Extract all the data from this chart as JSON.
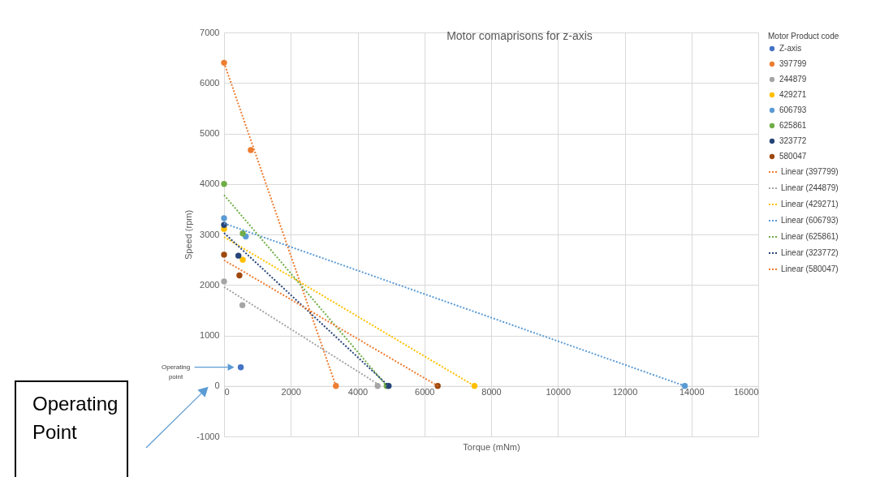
{
  "chart_data": {
    "type": "scatter",
    "title": "Motor comaprisons for z-axis",
    "xlabel": "Torque (mNm)",
    "ylabel": "Speed (rpm)",
    "legend_title": "Motor Product code",
    "xlim": [
      0,
      16000
    ],
    "xticks": [
      0,
      2000,
      4000,
      6000,
      8000,
      10000,
      12000,
      14000,
      16000
    ],
    "ylim": [
      -1000,
      7000
    ],
    "yticks": [
      -1000,
      0,
      1000,
      2000,
      3000,
      4000,
      5000,
      6000,
      7000
    ],
    "grid": true,
    "legend": "top right",
    "marker": "circle",
    "series": [
      {
        "name": "Z-axis",
        "color": "#4472c4",
        "x": [
          500
        ],
        "values": [
          370
        ]
      },
      {
        "name": "397799",
        "color": "#ed7d31",
        "x": [
          0,
          800,
          3350
        ],
        "values": [
          6400,
          4670,
          0
        ]
      },
      {
        "name": "244879",
        "color": "#a5a5a5",
        "x": [
          0,
          550,
          4600
        ],
        "values": [
          2070,
          1600,
          0
        ]
      },
      {
        "name": "429271",
        "color": "#ffc000",
        "x": [
          0,
          560,
          7500
        ],
        "values": [
          3110,
          2500,
          0
        ]
      },
      {
        "name": "606793",
        "color": "#5b9bd5",
        "x": [
          0,
          650,
          13800
        ],
        "values": [
          3320,
          2960,
          0
        ]
      },
      {
        "name": "625861",
        "color": "#70ad47",
        "x": [
          0,
          560,
          4870
        ],
        "values": [
          4000,
          3020,
          0
        ]
      },
      {
        "name": "323772",
        "color": "#264478",
        "x": [
          0,
          430,
          4930
        ],
        "values": [
          3190,
          2580,
          0
        ]
      },
      {
        "name": "580047",
        "color": "#9e480e",
        "x": [
          0,
          460,
          6400
        ],
        "values": [
          2600,
          2190,
          0
        ]
      },
      {
        "name": "Linear (397799)",
        "type": "line",
        "marker": "none",
        "line_style": "dotted",
        "color": "#ed7d31",
        "x": [
          0,
          3350
        ],
        "values": [
          6400,
          0
        ]
      },
      {
        "name": "Linear (244879)",
        "type": "line",
        "marker": "none",
        "line_style": "dotted",
        "color": "#a5a5a5",
        "x": [
          0,
          4600
        ],
        "values": [
          1960,
          40
        ]
      },
      {
        "name": "Linear (429271)",
        "type": "line",
        "marker": "none",
        "line_style": "dotted",
        "color": "#ffc000",
        "x": [
          0,
          7500
        ],
        "values": [
          2950,
          0
        ]
      },
      {
        "name": "Linear (606793)",
        "type": "line",
        "marker": "none",
        "line_style": "dotted",
        "color": "#5b9bd5",
        "x": [
          0,
          13800
        ],
        "values": [
          3220,
          0
        ]
      },
      {
        "name": "Linear (625861)",
        "type": "line",
        "marker": "none",
        "line_style": "dotted",
        "color": "#70ad47",
        "x": [
          0,
          4870
        ],
        "values": [
          3780,
          0
        ]
      },
      {
        "name": "Linear (323772)",
        "type": "line",
        "marker": "none",
        "line_style": "dotted",
        "color": "#264478",
        "x": [
          0,
          4930
        ],
        "values": [
          3030,
          0
        ]
      },
      {
        "name": "Linear (580047)",
        "type": "line",
        "marker": "none",
        "line_style": "dotted",
        "color": "#ed7d31",
        "x": [
          0,
          6400
        ],
        "values": [
          2490,
          0
        ]
      }
    ],
    "annotations": [
      "Operating point",
      "Operating Point"
    ]
  }
}
